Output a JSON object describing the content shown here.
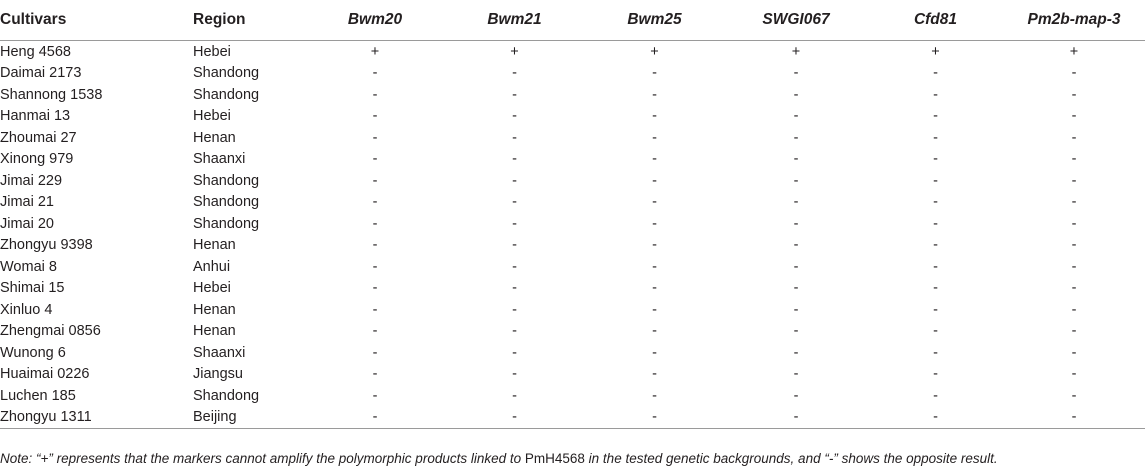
{
  "table": {
    "headers": {
      "cultivars": "Cultivars",
      "region": "Region",
      "markers": [
        "Bwm20",
        "Bwm21",
        "Bwm25",
        "SWGI067",
        "Cfd81",
        "Pm2b-map-3"
      ]
    },
    "rows": [
      {
        "cultivar": "Heng 4568",
        "region": "Hebei",
        "results": [
          "+",
          "+",
          "+",
          "+",
          "+",
          "+"
        ]
      },
      {
        "cultivar": "Daimai 2173",
        "region": "Shandong",
        "results": [
          "-",
          "-",
          "-",
          "-",
          "-",
          "-"
        ]
      },
      {
        "cultivar": "Shannong 1538",
        "region": "Shandong",
        "results": [
          "-",
          "-",
          "-",
          "-",
          "-",
          "-"
        ]
      },
      {
        "cultivar": "Hanmai 13",
        "region": "Hebei",
        "results": [
          "-",
          "-",
          "-",
          "-",
          "-",
          "-"
        ]
      },
      {
        "cultivar": "Zhoumai 27",
        "region": "Henan",
        "results": [
          "-",
          "-",
          "-",
          "-",
          "-",
          "-"
        ]
      },
      {
        "cultivar": "Xinong 979",
        "region": "Shaanxi",
        "results": [
          "-",
          "-",
          "-",
          "-",
          "-",
          "-"
        ]
      },
      {
        "cultivar": "Jimai 229",
        "region": "Shandong",
        "results": [
          "-",
          "-",
          "-",
          "-",
          "-",
          "-"
        ]
      },
      {
        "cultivar": "Jimai 21",
        "region": "Shandong",
        "results": [
          "-",
          "-",
          "-",
          "-",
          "-",
          "-"
        ]
      },
      {
        "cultivar": "Jimai 20",
        "region": "Shandong",
        "results": [
          "-",
          "-",
          "-",
          "-",
          "-",
          "-"
        ]
      },
      {
        "cultivar": "Zhongyu 9398",
        "region": "Henan",
        "results": [
          "-",
          "-",
          "-",
          "-",
          "-",
          "-"
        ]
      },
      {
        "cultivar": "Womai 8",
        "region": "Anhui",
        "results": [
          "-",
          "-",
          "-",
          "-",
          "-",
          "-"
        ]
      },
      {
        "cultivar": "Shimai 15",
        "region": "Hebei",
        "results": [
          "-",
          "-",
          "-",
          "-",
          "-",
          "-"
        ]
      },
      {
        "cultivar": "Xinluo 4",
        "region": "Henan",
        "results": [
          "-",
          "-",
          "-",
          "-",
          "-",
          "-"
        ]
      },
      {
        "cultivar": "Zhengmai 0856",
        "region": "Henan",
        "results": [
          "-",
          "-",
          "-",
          "-",
          "-",
          "-"
        ]
      },
      {
        "cultivar": "Wunong 6",
        "region": "Shaanxi",
        "results": [
          "-",
          "-",
          "-",
          "-",
          "-",
          "-"
        ]
      },
      {
        "cultivar": "Huaimai 0226",
        "region": "Jiangsu",
        "results": [
          "-",
          "-",
          "-",
          "-",
          "-",
          "-"
        ]
      },
      {
        "cultivar": "Luchen 185",
        "region": "Shandong",
        "results": [
          "-",
          "-",
          "-",
          "-",
          "-",
          "-"
        ]
      },
      {
        "cultivar": "Zhongyu 1311",
        "region": "Beijing",
        "results": [
          "-",
          "-",
          "-",
          "-",
          "-",
          "-"
        ]
      }
    ]
  },
  "note": {
    "prefix": "Note: “+” represents that the markers cannot amplify the polymorphic products linked to ",
    "gene": "PmH4568",
    "suffix": " in the tested genetic backgrounds, and “-” shows the opposite result."
  }
}
